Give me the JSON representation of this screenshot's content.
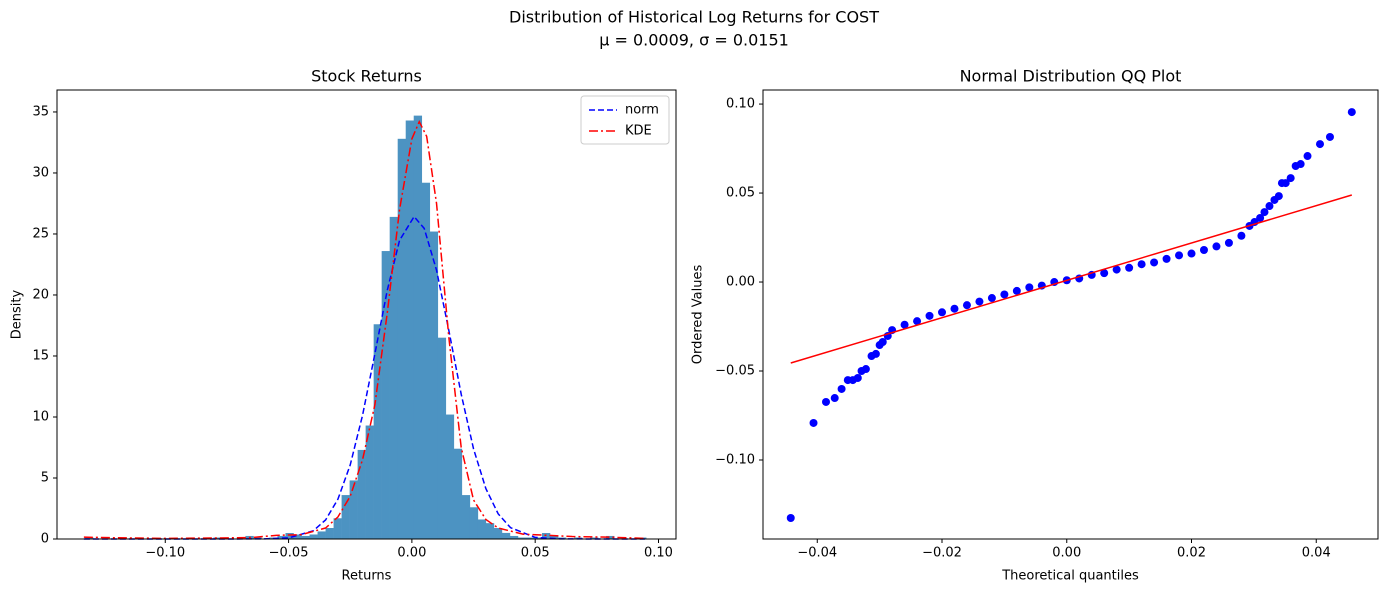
{
  "title": "Distribution of Historical Log Returns for COST",
  "subtitle": "μ = 0.0009, σ = 0.0151",
  "chart_data": [
    {
      "type": "histogram",
      "title": "Stock Returns",
      "xlabel": "Returns",
      "ylabel": "Density",
      "color": "#4c93c2",
      "bins": [
        -0.1325,
        -0.12925,
        -0.126,
        -0.12275,
        -0.1195,
        -0.11625,
        -0.113,
        -0.10975,
        -0.1065,
        -0.10325,
        -0.1,
        -0.09675,
        -0.0935,
        -0.09025,
        -0.087,
        -0.08375,
        -0.0805,
        -0.07725,
        -0.074,
        -0.07075,
        -0.0675,
        -0.06425,
        -0.061,
        -0.05775,
        -0.0545,
        -0.05125,
        -0.048,
        -0.04475,
        -0.0415,
        -0.03825,
        -0.035,
        -0.03175,
        -0.0285,
        -0.02525,
        -0.022,
        -0.01875,
        -0.0155,
        -0.01225,
        -0.009,
        -0.00575,
        -0.0025,
        0.00075,
        0.004,
        0.00725,
        0.0105,
        0.01375,
        0.017,
        0.02025,
        0.0235,
        0.02675,
        0.03,
        0.03325,
        0.0365,
        0.03975,
        0.043,
        0.04625,
        0.0495,
        0.05275,
        0.056,
        0.05925,
        0.0625,
        0.06575,
        0.069,
        0.07225,
        0.0755,
        0.07875,
        0.082,
        0.08525,
        0.0885,
        0.09175,
        0.095
      ],
      "values": [
        0.12,
        0,
        0,
        0,
        0,
        0,
        0,
        0,
        0,
        0,
        0,
        0,
        0,
        0,
        0,
        0,
        0.12,
        0,
        0,
        0,
        0.25,
        0.12,
        0,
        0.12,
        0.25,
        0.49,
        0.37,
        0.25,
        0.37,
        0.62,
        0.9,
        1.7,
        3.6,
        4.8,
        7.3,
        9.3,
        17.6,
        23.6,
        26.4,
        32.8,
        34.3,
        34.7,
        29.2,
        25.2,
        16.5,
        10.2,
        7.4,
        3.6,
        2.6,
        1.6,
        1.3,
        0.9,
        0.5,
        0.25,
        0.12,
        0.12,
        0.12,
        0.49,
        0.25,
        0.12,
        0,
        0.12,
        0,
        0.12,
        0,
        0.25,
        0,
        0,
        0,
        0.12
      ],
      "series": [
        {
          "name": "norm",
          "color": "#0000ff",
          "style": "dashed",
          "x": [
            -0.133,
            -0.1,
            -0.08,
            -0.06,
            -0.05,
            -0.04,
            -0.035,
            -0.03,
            -0.025,
            -0.02,
            -0.015,
            -0.01,
            -0.005,
            0.0009,
            0.005,
            0.01,
            0.015,
            0.02,
            0.025,
            0.03,
            0.035,
            0.04,
            0.05,
            0.06,
            0.08,
            0.0945
          ],
          "values": [
            0,
            0,
            0,
            0.01,
            0.09,
            0.67,
            1.56,
            3.26,
            6.07,
            10.14,
            15.18,
            20.36,
            24.48,
            26.42,
            25.46,
            22.03,
            17.08,
            11.87,
            7.39,
            4.13,
            2.06,
            0.93,
            0.13,
            0.01,
            0,
            0
          ]
        },
        {
          "name": "KDE",
          "color": "#ff0000",
          "style": "dashdot",
          "x": [
            -0.133,
            -0.12,
            -0.1,
            -0.08,
            -0.065,
            -0.055,
            -0.045,
            -0.035,
            -0.03,
            -0.025,
            -0.02,
            -0.015,
            -0.01,
            -0.005,
            0,
            0.003,
            0.006,
            0.01,
            0.015,
            0.02,
            0.025,
            0.03,
            0.035,
            0.045,
            0.055,
            0.065,
            0.08,
            0.0945
          ],
          "values": [
            0.15,
            0.1,
            0.05,
            0.08,
            0.12,
            0.3,
            0.35,
            0.9,
            1.8,
            3.5,
            6.5,
            11,
            18.5,
            27,
            32.8,
            34.2,
            33,
            27.5,
            16.5,
            7.5,
            3.2,
            1.6,
            0.9,
            0.4,
            0.3,
            0.2,
            0.15,
            0.05
          ]
        }
      ],
      "legend": "upper right",
      "xlim": [
        -0.1439,
        0.1071
      ],
      "ylim": [
        0,
        36.8
      ],
      "xticks": [
        {
          "value": -0.1,
          "label": "−0.10"
        },
        {
          "value": -0.05,
          "label": "−0.05"
        },
        {
          "value": 0,
          "label": "0.00"
        },
        {
          "value": 0.05,
          "label": "0.05"
        },
        {
          "value": 0.1,
          "label": "0.10"
        }
      ],
      "yticks": [
        0,
        5,
        10,
        15,
        20,
        25,
        30,
        35
      ]
    },
    {
      "type": "scatter",
      "title": "Normal Distribution QQ Plot",
      "xlabel": "Theoretical quantiles",
      "ylabel": "Ordered Values",
      "color": "#0000ff",
      "x": [
        -0.04425,
        -0.0406,
        -0.0386,
        -0.0372,
        -0.0361,
        -0.0351,
        -0.0343,
        -0.0335,
        -0.0329,
        -0.0322,
        -0.0313,
        -0.0306,
        -0.03,
        -0.0295,
        -0.0287,
        -0.028,
        -0.026,
        -0.024,
        -0.022,
        -0.02,
        -0.018,
        -0.016,
        -0.014,
        -0.012,
        -0.01,
        -0.008,
        -0.006,
        -0.004,
        -0.002,
        0,
        0.002,
        0.004,
        0.006,
        0.008,
        0.01,
        0.012,
        0.014,
        0.016,
        0.018,
        0.02,
        0.022,
        0.024,
        0.026,
        0.028,
        0.0293,
        0.0301,
        0.031,
        0.0317,
        0.0325,
        0.0333,
        0.034,
        0.0345,
        0.0351,
        0.0359,
        0.0367,
        0.0375,
        0.0386,
        0.0406,
        0.0422,
        0.0457
      ],
      "values": [
        -0.1326,
        -0.0792,
        -0.0674,
        -0.0652,
        -0.0601,
        -0.0551,
        -0.0551,
        -0.0539,
        -0.05,
        -0.0489,
        -0.0416,
        -0.0404,
        -0.0354,
        -0.0337,
        -0.0303,
        -0.027,
        -0.024,
        -0.022,
        -0.019,
        -0.017,
        -0.015,
        -0.013,
        -0.011,
        -0.009,
        -0.007,
        -0.005,
        -0.003,
        -0.002,
        0,
        0.001,
        0.002,
        0.004,
        0.005,
        0.007,
        0.008,
        0.01,
        0.011,
        0.013,
        0.015,
        0.016,
        0.018,
        0.02,
        0.022,
        0.026,
        0.0315,
        0.0337,
        0.036,
        0.0393,
        0.0427,
        0.0461,
        0.0483,
        0.0556,
        0.0556,
        0.0584,
        0.0652,
        0.0663,
        0.0708,
        0.0775,
        0.0815,
        0.0955
      ],
      "fit_line": {
        "color": "#ff0000",
        "x": [
          -0.04425,
          0.0457
        ],
        "values": [
          -0.0455,
          0.0489
        ]
      },
      "xlim": [
        -0.0487,
        0.0499
      ],
      "ylim": [
        -0.1444,
        0.1079
      ],
      "xticks": [
        {
          "value": -0.04,
          "label": "−0.04"
        },
        {
          "value": -0.02,
          "label": "−0.02"
        },
        {
          "value": 0,
          "label": "0.00"
        },
        {
          "value": 0.02,
          "label": "0.02"
        },
        {
          "value": 0.04,
          "label": "0.04"
        }
      ],
      "yticks": [
        {
          "value": -0.1,
          "label": "−0.10"
        },
        {
          "value": -0.05,
          "label": "−0.05"
        },
        {
          "value": 0,
          "label": "0.00"
        },
        {
          "value": 0.05,
          "label": "0.05"
        },
        {
          "value": 0.1,
          "label": "0.10"
        }
      ]
    }
  ]
}
